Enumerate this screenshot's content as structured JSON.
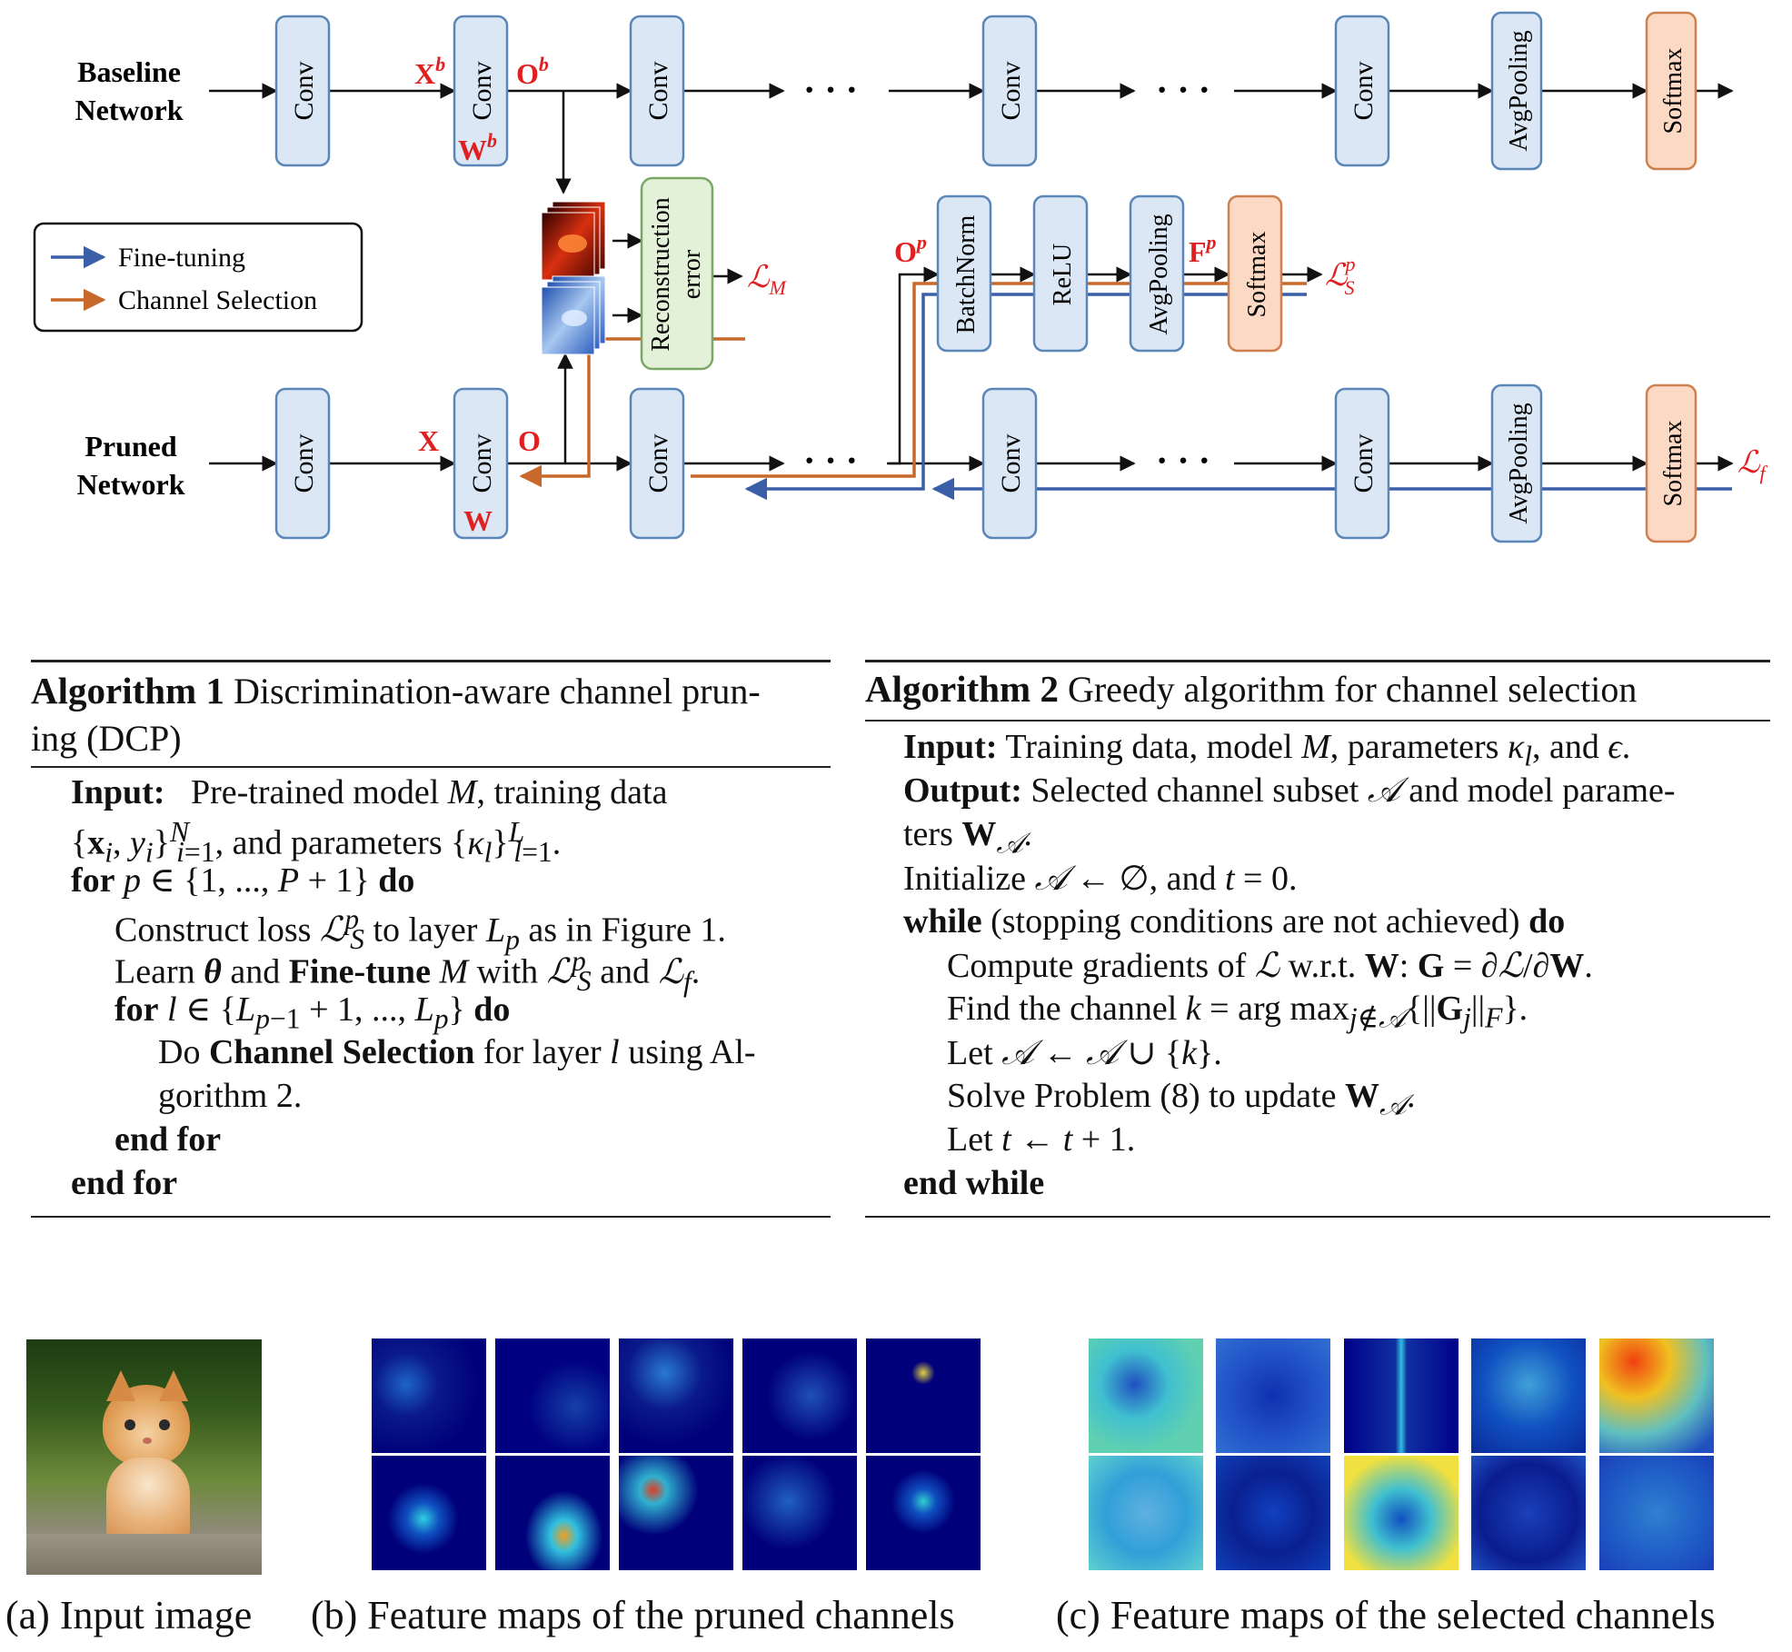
{
  "diagram": {
    "baseline_label": [
      "Baseline",
      "Network"
    ],
    "pruned_label": [
      "Pruned",
      "Network"
    ],
    "legend": {
      "fine_tuning": "Fine-tuning",
      "channel_selection": "Channel Selection"
    },
    "blocks": {
      "conv": "Conv",
      "avgpool": "AvgPooling",
      "softmax": "Softmax",
      "batchnorm": "BatchNorm",
      "relu": "ReLU",
      "recon": [
        "Reconstruction",
        "error"
      ]
    },
    "ellipsis": "· · ·",
    "vars": {
      "xb": "X",
      "xb_sup": "b",
      "ob": "O",
      "ob_sup": "b",
      "wb": "W",
      "wb_sup": "b",
      "x": "X",
      "o": "O",
      "w": "W",
      "op": "O",
      "op_sup": "p",
      "fp": "F",
      "fp_sup": "p",
      "lm": "ℒ",
      "lm_sub": "M",
      "ls": "ℒ",
      "ls_sub": "S",
      "ls_sup": "p",
      "lf": "ℒ",
      "lf_sub": "f"
    },
    "colors": {
      "fine_tuning": "#3a5fa8",
      "channel_selection": "#c8682a",
      "conv_fill": "#dbe7f5",
      "conv_stroke": "#5a86b8",
      "softmax_fill": "#fbd9c4",
      "softmax_stroke": "#d08050",
      "recon_fill": "#e3f1d8",
      "recon_stroke": "#7aa864",
      "accent_red": "#e02020"
    }
  },
  "algorithm1": {
    "title_bold": "Algorithm 1",
    "title_rest_1": " Discrimination-aware channel prun-",
    "title_rest_2": "ing (DCP)",
    "lines": [
      "Input:  Pre-trained model M, training data",
      "{xᵢ, yᵢ}ᵢ₌₁ᴺ, and parameters {κₗ}ₗ₌₁ᴸ.",
      "for p ∈ {1, ..., P + 1} do",
      "Construct loss ℒₛᵖ to layer Lₚ as in Figure 1.",
      "Learn θ and Fine-tune M with ℒₛᵖ and ℒf.",
      "for l ∈ {Lₚ₋₁ + 1, ..., Lₚ} do",
      "Do Channel Selection for layer l using Al-",
      "gorithm 2.",
      "end for",
      "end for"
    ]
  },
  "algorithm2": {
    "title_bold": "Algorithm 2",
    "title_rest": " Greedy algorithm for channel selection",
    "lines": [
      "Input: Training data, model M, parameters κₗ, and ϵ.",
      "Output: Selected channel subset 𝒜 and model parame-",
      "ters W𝒜.",
      "Initialize 𝒜 ← ∅, and t = 0.",
      "while (stopping conditions are not achieved) do",
      "Compute gradients of ℒ w.r.t. W: G = ∂ℒ/∂W.",
      "Find the channel k = arg max_{j∉𝒜}{||Gⱼ||F}.",
      "Let 𝒜 ← 𝒜 ∪ {k}.",
      "Solve Problem (8) to update W𝒜.",
      "Let t ← t + 1.",
      "end while"
    ]
  },
  "captions": {
    "a": "(a) Input image",
    "b": "(b) Feature maps of the pruned channels",
    "c": "(c) Feature maps of the selected channels"
  }
}
